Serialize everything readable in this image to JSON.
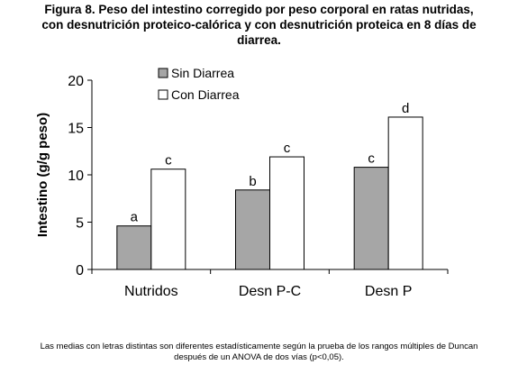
{
  "title_lines": [
    "Figura 8. Peso del intestino corregido por peso corporal en ratas nutridas,",
    "con desnutrición proteico-calórica y con desnutrición proteica en  8 días de",
    "diarrea."
  ],
  "footnote_lines": [
    "Las medias con letras distintas son diferentes estadísticamente según la prueba de los rangos múltiples de Duncan",
    "después de un ANOVA de dos vías (p<0,05)."
  ],
  "chart_data": {
    "type": "bar",
    "title": "Figura 8. Peso del intestino corregido por peso corporal en ratas nutridas, con desnutrición proteico-calórica y con desnutrición proteica en  8 días de diarrea.",
    "xlabel": "",
    "ylabel": "Intestino (g/g peso)",
    "categories": [
      "Nutridos",
      "Desn P-C",
      "Desn P"
    ],
    "series": [
      {
        "name": "Sin Diarrea",
        "values": [
          4.6,
          8.4,
          10.8
        ],
        "labels": [
          "a",
          "b",
          "c"
        ],
        "color": "#a6a6a6"
      },
      {
        "name": "Con Diarrea",
        "values": [
          10.6,
          11.9,
          16.1
        ],
        "labels": [
          "c",
          "c",
          "d"
        ],
        "color": "#ffffff"
      }
    ],
    "ylim": [
      0,
      20
    ],
    "yticks": [
      "0",
      "5",
      "10",
      "15",
      "20"
    ],
    "grid": false,
    "legend": "top-left"
  }
}
